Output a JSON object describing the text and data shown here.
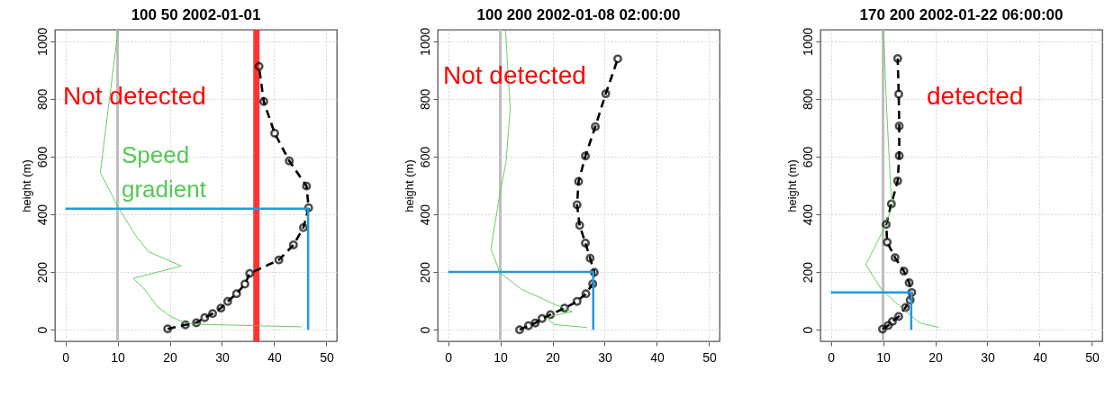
{
  "chart_data": [
    {
      "type": "line",
      "title": "100 50 2002-01-01",
      "ylabel": "height (m)",
      "xlim": [
        -2,
        52
      ],
      "ylim": [
        -40,
        1040
      ],
      "xticks": [
        0,
        10,
        20,
        30,
        40,
        50
      ],
      "yticks": [
        0,
        200,
        400,
        600,
        800,
        1000
      ],
      "grid": true,
      "annotations": [
        "Not detected"
      ],
      "ref_lines": [
        {
          "axis": "x",
          "value": 10,
          "color": "#bebebe"
        },
        {
          "axis": "x",
          "value": 36.6,
          "color": "#ff3333"
        }
      ],
      "series": [
        {
          "color": "#000000",
          "line_style": "dashed",
          "marker": "circle",
          "x": [
            19.6,
            23.0,
            25.1,
            26.7,
            28.2,
            29.8,
            31.1,
            32.8,
            34.4,
            35.3,
            40.9,
            43.7,
            45.6,
            46.6,
            46.2,
            42.9,
            40.1,
            38.0,
            37.1
          ],
          "values": [
            3,
            17,
            24,
            42,
            56,
            75,
            98,
            125,
            158,
            195,
            242,
            294,
            354,
            423,
            498,
            585,
            681,
            791,
            913
          ]
        },
        {
          "name": "Speed gradient",
          "color": "#55c855",
          "line_style": "solid",
          "marker": "none",
          "x": [
            10.1,
            6.7,
            10.1,
            13.3,
            15.9,
            22.2,
            13.0,
            15.0,
            17.6,
            20.2,
            23.0,
            25.9,
            45.2
          ],
          "values": [
            1040,
            545,
            425,
            331,
            271,
            221,
            178,
            144,
            81,
            45,
            24,
            19,
            10
          ]
        },
        {
          "color": "#1f9bde",
          "line_style": "solid",
          "marker": "none",
          "x": [
            0,
            46.5,
            46.5
          ],
          "values": [
            420,
            420,
            0
          ]
        }
      ]
    },
    {
      "type": "line",
      "title": "100 200 2002-01-08 02:00:00",
      "ylabel": "height (m)",
      "xlim": [
        -2,
        52
      ],
      "ylim": [
        -40,
        1040
      ],
      "xticks": [
        0,
        10,
        20,
        30,
        40,
        50
      ],
      "yticks": [
        0,
        200,
        400,
        600,
        800,
        1000
      ],
      "grid": true,
      "annotations": [
        "Not detected"
      ],
      "ref_lines": [
        {
          "axis": "x",
          "value": 10,
          "color": "#bebebe"
        }
      ],
      "series": [
        {
          "color": "#000000",
          "line_style": "dashed",
          "marker": "circle",
          "x": [
            13.7,
            15.4,
            16.7,
            18.0,
            19.6,
            22.3,
            24.7,
            26.4,
            27.7,
            28.0,
            27.2,
            26.3,
            25.2,
            24.7,
            25.0,
            26.3,
            28.2,
            30.2,
            32.5
          ],
          "values": [
            0,
            14,
            23,
            39,
            52,
            75,
            98,
            125,
            159,
            199,
            248,
            300,
            362,
            433,
            514,
            602,
            704,
            818,
            939
          ]
        },
        {
          "color": "#55c855",
          "line_style": "solid",
          "marker": "none",
          "x": [
            11.0,
            11.9,
            11.1,
            9.6,
            8.2,
            9.9,
            14.0,
            19.7,
            23.8,
            19.5,
            19.2,
            20.3,
            26.6
          ],
          "values": [
            1040,
            765,
            583,
            437,
            281,
            198,
            141,
            94,
            62,
            47,
            36,
            18,
            8
          ]
        },
        {
          "color": "#1f9bde",
          "line_style": "solid",
          "marker": "none",
          "x": [
            0,
            27.8,
            27.8
          ],
          "values": [
            200,
            200,
            0
          ]
        }
      ]
    },
    {
      "type": "line",
      "title": "170 200 2002-01-22 06:00:00",
      "ylabel": "height (m)",
      "xlim": [
        -2,
        52
      ],
      "ylim": [
        -40,
        1040
      ],
      "xticks": [
        0,
        10,
        20,
        30,
        40,
        50
      ],
      "yticks": [
        0,
        200,
        400,
        600,
        800,
        1000
      ],
      "grid": true,
      "annotations": [
        "detected"
      ],
      "ref_lines": [
        {
          "axis": "x",
          "value": 10,
          "color": "#bebebe"
        }
      ],
      "series": [
        {
          "color": "#000000",
          "line_style": "dashed",
          "marker": "circle",
          "x": [
            9.9,
            11.0,
            11.8,
            13.0,
            14.3,
            15.2,
            15.5,
            15.0,
            14.0,
            12.3,
            10.8,
            10.6,
            11.6,
            12.8,
            13.1,
            13.1,
            13.0,
            12.8
          ],
          "values": [
            2,
            15,
            29,
            46,
            77,
            103,
            129,
            163,
            203,
            250,
            303,
            365,
            436,
            516,
            603,
            706,
            817,
            940
          ]
        },
        {
          "color": "#55c855",
          "line_style": "solid",
          "marker": "none",
          "x": [
            10.1,
            10.7,
            11.5,
            11.8,
            10.1,
            6.7,
            9.8,
            13.5,
            17.0,
            20.7
          ],
          "values": [
            1040,
            760,
            482,
            430,
            348,
            225,
            137,
            77,
            24,
            8
          ]
        },
        {
          "color": "#1f9bde",
          "line_style": "solid",
          "marker": "none",
          "x": [
            0,
            15.4,
            15.4
          ],
          "values": [
            129,
            129,
            0
          ]
        }
      ]
    }
  ]
}
